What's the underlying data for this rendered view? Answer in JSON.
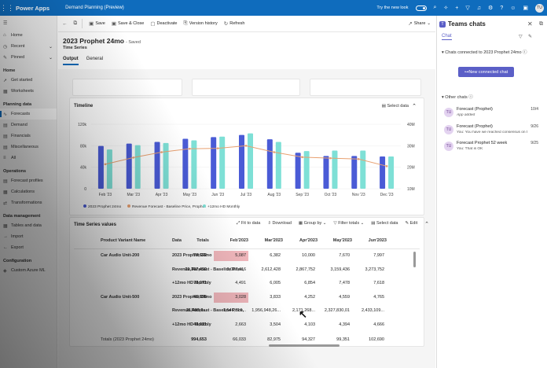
{
  "topbar": {
    "app_name": "Power Apps",
    "page_name": "Demand Planning (Preview)",
    "new_look_label": "Try the new look",
    "avatar_initials": "TU"
  },
  "sidebar": {
    "top_items": [
      {
        "label": "Home",
        "icon": "home-icon"
      },
      {
        "label": "Recent",
        "icon": "clock-icon"
      },
      {
        "label": "Pinned",
        "icon": "pin-icon"
      }
    ],
    "home_group": "Home",
    "home_items": [
      "Get started",
      "Worksheets"
    ],
    "planning_group": "Planning data",
    "planning_items": [
      "Forecasts",
      "Demand",
      "Financials",
      "Miscellaneous",
      "All"
    ],
    "operations_group": "Operations",
    "operations_items": [
      "Forecast profiles",
      "Calculations",
      "Transformations"
    ],
    "data_group": "Data management",
    "data_items": [
      "Tables and data",
      "Import",
      "Export"
    ],
    "config_group": "Configuration",
    "config_items": [
      "Custom Azure ML"
    ]
  },
  "commands": {
    "save": "Save",
    "save_close": "Save & Close",
    "deactivate": "Deactivate",
    "version_history": "Version history",
    "refresh": "Refresh",
    "share": "Share"
  },
  "header": {
    "title": "2023 Prophet 24mo",
    "saved": "- Saved",
    "subtitle": "Time Series",
    "tabs": [
      "Output",
      "General"
    ]
  },
  "timeline": {
    "title": "Timeline",
    "select_data": "Select data"
  },
  "chart_data": {
    "type": "bar",
    "categories": [
      "Feb '23",
      "Mar '23",
      "Apr '23",
      "May '23",
      "Jun '23",
      "Jul '23",
      "Aug '23",
      "Sep '23",
      "Oct '23",
      "Nov '23",
      "Dec '23"
    ],
    "left_ticks": [
      "120k",
      "80k",
      "40k",
      "0"
    ],
    "right_ticks": [
      "40M",
      "30M",
      "20M",
      "10M"
    ],
    "ylim_left": [
      0,
      120000
    ],
    "ylim_right": [
      10000000,
      40000000
    ],
    "series": [
      {
        "name": "2023 Prophet 24mo",
        "color": "#4a5bd6",
        "values": [
          79622,
          84000,
          87000,
          93000,
          96000,
          100000,
          92000,
          67000,
          61000,
          61000,
          60000
        ]
      },
      {
        "name": "Revenue Forecast - Baseline Price, Prophet",
        "color": "#e8a070",
        "values": [
          21403900,
          24500000,
          27000000,
          28600000,
          28800000,
          30000000,
          27000000,
          24700000,
          24200000,
          23800000,
          20500000
        ]
      },
      {
        "name": "+12mo HD Monthly",
        "color": "#7ee0d6",
        "values": [
          73071,
          81000,
          85000,
          90000,
          97000,
          103000,
          87000,
          70000,
          71000,
          71000,
          60000
        ]
      }
    ]
  },
  "tsv": {
    "title": "Time Series values",
    "tools": [
      "Fit to data",
      "Download",
      "Group by",
      "Filter totals",
      "Select data",
      "Edit"
    ],
    "columns": [
      "Product Variant Name",
      "Data",
      "Totals",
      "Feb'2023",
      "Mar'2023",
      "Apr'2023",
      "May'2023",
      "Jun'2023"
    ],
    "rows": [
      {
        "product": "Car Audio Unit-200",
        "data": "2023 Prophet 24mo",
        "values": [
          "79,622",
          "5,087",
          "6,382",
          "10,000",
          "7,670",
          "7,997"
        ]
      },
      {
        "product": "",
        "data": "Revenue Forecast - Baseline Price, P...",
        "values": [
          "21,367,492",
          "2,082,416",
          "2,612,428",
          "2,867,752",
          "3,159,436",
          "3,273,752"
        ]
      },
      {
        "product": "",
        "data": "+12mo HD Monthly",
        "values": [
          "73,071",
          "4,491",
          "6,005",
          "6,854",
          "7,478",
          "7,618"
        ]
      },
      {
        "product": "Car Audio Unit-500",
        "data": "2023 Prophet 24mo",
        "values": [
          "45,835",
          "3,028",
          "3,833",
          "4,252",
          "4,559",
          "4,765"
        ]
      },
      {
        "product": "",
        "data": "Revenue Forecast - Baseline Price, P...",
        "values": [
          "21,403,9...",
          "1,546,316...",
          "1,956,948,26...",
          "2,171,268...",
          "2,327,830,01",
          "2,433,109..."
        ]
      },
      {
        "product": "",
        "data": "+12mo HD Monthly",
        "values": [
          "43,621",
          "2,663",
          "3,504",
          "4,103",
          "4,394",
          "4,666"
        ]
      }
    ],
    "totals_label": "Totals (2023 Prophet 24mo)",
    "totals_values": [
      "994,653",
      "66,033",
      "82,975",
      "94,327",
      "99,351",
      "102,690"
    ]
  },
  "teams": {
    "title": "Teams chats",
    "tab": "Chat",
    "connected_label": "Chats connected to 2023 Prophet 24mo",
    "new_chat": "New connected chat",
    "other_label": "Other chats",
    "chats": [
      {
        "initials": "TU",
        "name": "Forecast (Prophet)",
        "preview": "App added",
        "date": "10/4"
      },
      {
        "initials": "TU",
        "name": "Forecast (Prophet)",
        "preview": "You: You have we reached consensus on the Octo...",
        "date": "9/26"
      },
      {
        "initials": "TU",
        "name": "Forecast Prophet 52 week",
        "preview": "You: That is OK",
        "date": "9/25"
      }
    ]
  }
}
